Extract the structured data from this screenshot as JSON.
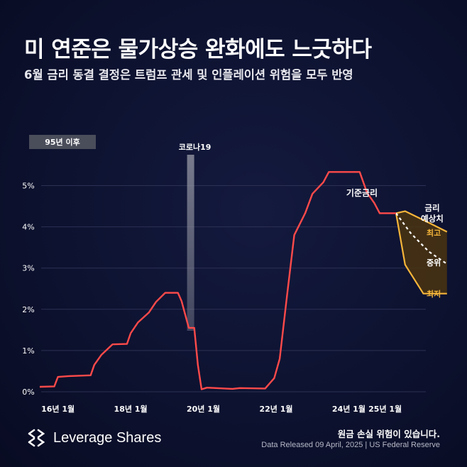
{
  "header": {
    "title": "미 연준은 물가상승 완화에도 느긋하다",
    "subtitle": "6월 금리 동결 결정은 트럼프 관세 및 인플레이션 위험을 모두 반영"
  },
  "footer": {
    "brand": "Leverage Shares",
    "disclaimer": "원금 손실 위험이 있습니다.",
    "source": "Data Released 09 April, 2025 | US Federal Reserve"
  },
  "colors": {
    "line": "#ff4a4a",
    "band_outline": "#f5b53a",
    "band_fill": "#4a3410",
    "median": "#ffffff",
    "grid": "#2c3154",
    "badge_bg": "#4a4d5a"
  },
  "chart_data": {
    "type": "line",
    "badge": "95년 이후",
    "ylim": [
      0,
      5.8
    ],
    "xlim": [
      2015.5,
      2026.9
    ],
    "y_ticks": [
      {
        "value": 0,
        "label": "0%"
      },
      {
        "value": 1,
        "label": "1%"
      },
      {
        "value": 2,
        "label": "2%"
      },
      {
        "value": 3,
        "label": "3%"
      },
      {
        "value": 4,
        "label": "4%"
      },
      {
        "value": 5,
        "label": "5%"
      }
    ],
    "x_ticks": [
      {
        "value": 2016,
        "label": "16년 1월"
      },
      {
        "value": 2018,
        "label": "18년 1월"
      },
      {
        "value": 2020,
        "label": "20년 1월"
      },
      {
        "value": 2022,
        "label": "22년 1월"
      },
      {
        "value": 2024,
        "label": "24년 1월"
      },
      {
        "value": 2025,
        "label": "25년 1월"
      }
    ],
    "covid_label": "코로나19",
    "covid_x": 2019.65,
    "series": [
      {
        "name": "기준금리",
        "points": [
          [
            2015.5,
            0.12
          ],
          [
            2015.9,
            0.13
          ],
          [
            2016.0,
            0.36
          ],
          [
            2016.3,
            0.38
          ],
          [
            2016.9,
            0.4
          ],
          [
            2017.0,
            0.65
          ],
          [
            2017.2,
            0.9
          ],
          [
            2017.5,
            1.15
          ],
          [
            2017.9,
            1.16
          ],
          [
            2018.0,
            1.42
          ],
          [
            2018.2,
            1.68
          ],
          [
            2018.5,
            1.92
          ],
          [
            2018.7,
            2.18
          ],
          [
            2018.95,
            2.4
          ],
          [
            2019.3,
            2.4
          ],
          [
            2019.4,
            2.2
          ],
          [
            2019.6,
            1.55
          ],
          [
            2019.75,
            1.55
          ],
          [
            2019.85,
            0.65
          ],
          [
            2019.95,
            0.06
          ],
          [
            2020.1,
            0.1
          ],
          [
            2020.8,
            0.07
          ],
          [
            2021.0,
            0.09
          ],
          [
            2021.7,
            0.08
          ],
          [
            2021.95,
            0.33
          ],
          [
            2022.1,
            0.8
          ],
          [
            2022.3,
            2.33
          ],
          [
            2022.5,
            3.8
          ],
          [
            2022.8,
            4.33
          ],
          [
            2023.0,
            4.8
          ],
          [
            2023.3,
            5.08
          ],
          [
            2023.45,
            5.33
          ],
          [
            2023.6,
            5.33
          ],
          [
            2024.3,
            5.33
          ],
          [
            2024.5,
            4.83
          ],
          [
            2024.7,
            4.58
          ],
          [
            2024.85,
            4.33
          ],
          [
            2025.3,
            4.33
          ]
        ]
      }
    ],
    "projection": {
      "label_title": "금리 예상치",
      "start": [
        2025.3,
        4.33
      ],
      "high": {
        "label": "최고",
        "points": [
          [
            2025.3,
            4.33
          ],
          [
            2025.55,
            4.38
          ],
          [
            2026.2,
            4.1
          ],
          [
            2026.7,
            3.88
          ]
        ]
      },
      "median": {
        "label": "중위",
        "points": [
          [
            2025.3,
            4.33
          ],
          [
            2025.7,
            3.85
          ],
          [
            2026.2,
            3.4
          ],
          [
            2026.7,
            3.1
          ]
        ]
      },
      "low": {
        "label": "최저",
        "points": [
          [
            2025.3,
            4.33
          ],
          [
            2025.55,
            3.08
          ],
          [
            2026.05,
            2.38
          ],
          [
            2026.7,
            2.38
          ]
        ]
      }
    }
  }
}
